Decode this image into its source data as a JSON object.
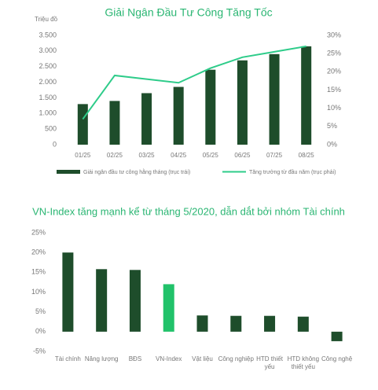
{
  "chart_data": [
    {
      "type": "combo",
      "title": "Giải Ngân Đầu Tư Công Tăng Tốc",
      "y_label": "Triệu đồ",
      "categories": [
        "01/25",
        "02/25",
        "03/25",
        "04/25",
        "05/25",
        "06/25",
        "07/25",
        "08/25"
      ],
      "series": [
        {
          "name": "Giải ngân đầu tư công hằng tháng (trục trái)",
          "type": "bar",
          "color": "#1e4d2b",
          "values": [
            1300,
            1400,
            1650,
            1850,
            2400,
            2700,
            2900,
            3150
          ]
        },
        {
          "name": "Tăng trưởng từ đầu năm (trục phải)",
          "type": "line",
          "axis": "y2",
          "color": "#2ecc8a",
          "values": [
            7,
            19,
            18,
            17,
            21,
            24,
            25.5,
            27
          ]
        }
      ],
      "ylim": [
        0,
        3500
      ],
      "yticks": [
        0,
        500,
        {
          "value": 1000,
          "label": "1.000"
        },
        {
          "value": 1500,
          "label": "1.500"
        },
        {
          "value": 2000,
          "label": "2.000"
        },
        {
          "value": 2500,
          "label": "2.500"
        },
        {
          "value": 3000,
          "label": "3.000"
        },
        {
          "value": 3500,
          "label": "3.500"
        }
      ],
      "y2lim": [
        0,
        30
      ],
      "y2ticks": [
        {
          "value": 0,
          "label": "0%"
        },
        {
          "value": 5,
          "label": "5%"
        },
        {
          "value": 10,
          "label": "10%"
        },
        {
          "value": 15,
          "label": "15%"
        },
        {
          "value": 20,
          "label": "20%"
        },
        {
          "value": 25,
          "label": "25%"
        },
        {
          "value": 30,
          "label": "30%"
        }
      ],
      "legend": "bottom",
      "grid": false
    },
    {
      "type": "bar",
      "title": "VN-Index tăng mạnh kể từ tháng 5/2020, dẫn dắt bởi nhóm Tài chính",
      "categories": [
        "Tài chính",
        "Năng lượng",
        "BĐS",
        "VN-Index",
        "Vật liệu",
        "Công nghiệp",
        "HTD thiết yếu",
        "HTD không thiết yếu",
        "Công nghệ"
      ],
      "values": [
        20,
        15.8,
        15.6,
        12,
        4.1,
        4,
        4,
        3.8,
        -2.4
      ],
      "colors": [
        "#1e4d2b",
        "#1e4d2b",
        "#1e4d2b",
        "#21c26a",
        "#1e4d2b",
        "#1e4d2b",
        "#1e4d2b",
        "#1e4d2b",
        "#1e4d2b"
      ],
      "ylim": [
        -5,
        25
      ],
      "yticks": [
        {
          "value": -5,
          "label": "-5%"
        },
        {
          "value": 0,
          "label": "0%"
        },
        {
          "value": 5,
          "label": "5%"
        },
        {
          "value": 10,
          "label": "10%"
        },
        {
          "value": 15,
          "label": "15%"
        },
        {
          "value": 20,
          "label": "20%"
        },
        {
          "value": 25,
          "label": "25%"
        }
      ],
      "grid": false
    }
  ]
}
